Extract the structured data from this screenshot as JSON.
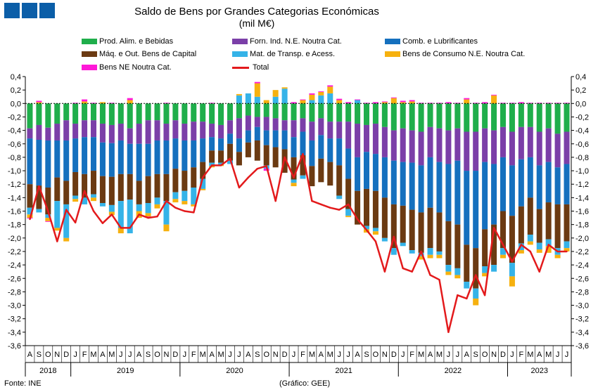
{
  "chart_data": {
    "type": "bar",
    "stacked": true,
    "title": "Saldo de Bens por Grandes Categorias Económicas",
    "subtitle": "(mil M€)",
    "ylim": [
      -3.6,
      0.4
    ],
    "ytick_step": 0.2,
    "yticks": [
      "0,4",
      "0,2",
      "0,0",
      "-0,2",
      "-0,4",
      "-0,6",
      "-0,8",
      "-1,0",
      "-1,2",
      "-1,4",
      "-1,6",
      "-1,8",
      "-2,0",
      "-2,2",
      "-2,4",
      "-2,6",
      "-2,8",
      "-3,0",
      "-3,2",
      "-3,4",
      "-3,6"
    ],
    "months": [
      "A",
      "S",
      "O",
      "N",
      "D",
      "J",
      "F",
      "M",
      "A",
      "M",
      "J",
      "J",
      "A",
      "S",
      "O",
      "N",
      "D",
      "J",
      "F",
      "M",
      "A",
      "M",
      "J",
      "J",
      "A",
      "S",
      "O",
      "N",
      "D",
      "J",
      "F",
      "M",
      "A",
      "M",
      "J",
      "J",
      "A",
      "S",
      "O",
      "N",
      "D",
      "J",
      "F",
      "M",
      "A",
      "M",
      "J",
      "J",
      "A",
      "S",
      "O",
      "N",
      "D",
      "J",
      "F",
      "M",
      "A",
      "M",
      "J",
      "J"
    ],
    "years": [
      {
        "label": "2018",
        "start": 0,
        "count": 5
      },
      {
        "label": "2019",
        "start": 5,
        "count": 12
      },
      {
        "label": "2020",
        "start": 17,
        "count": 12
      },
      {
        "label": "2021",
        "start": 29,
        "count": 12
      },
      {
        "label": "2022",
        "start": 41,
        "count": 12
      },
      {
        "label": "2023",
        "start": 53,
        "count": 7
      }
    ],
    "series": [
      {
        "name": "Prod. Alim. e Bebidas",
        "color": "#1fae4b",
        "values": [
          -0.37,
          -0.32,
          -0.36,
          -0.3,
          -0.25,
          -0.3,
          -0.25,
          -0.25,
          -0.3,
          -0.32,
          -0.3,
          -0.37,
          -0.3,
          -0.25,
          -0.25,
          -0.3,
          -0.25,
          -0.3,
          -0.27,
          -0.27,
          -0.3,
          -0.32,
          -0.25,
          -0.22,
          -0.18,
          -0.2,
          -0.2,
          -0.22,
          -0.25,
          -0.25,
          -0.22,
          -0.27,
          -0.22,
          -0.27,
          -0.27,
          -0.27,
          -0.3,
          -0.32,
          -0.3,
          -0.35,
          -0.4,
          -0.37,
          -0.4,
          -0.42,
          -0.35,
          -0.37,
          -0.4,
          -0.37,
          -0.42,
          -0.42,
          -0.37,
          -0.4,
          -0.35,
          -0.42,
          -0.35,
          -0.35,
          -0.42,
          -0.37,
          -0.45,
          -0.42
        ]
      },
      {
        "name": "Forn. Ind. N.E. Noutra Cat.",
        "color": "#7b3fa8",
        "values": [
          -0.15,
          -0.22,
          -0.19,
          -0.25,
          -0.3,
          -0.22,
          -0.25,
          -0.25,
          -0.28,
          -0.27,
          -0.25,
          -0.23,
          -0.3,
          -0.35,
          -0.3,
          -0.25,
          -0.27,
          -0.25,
          -0.28,
          -0.25,
          -0.2,
          -0.2,
          -0.2,
          -0.3,
          -0.22,
          -0.15,
          -0.2,
          -0.18,
          -0.15,
          -0.25,
          -0.2,
          -0.28,
          -0.25,
          -0.25,
          -0.25,
          -0.4,
          -0.5,
          -0.4,
          -0.45,
          -0.45,
          -0.45,
          -0.5,
          -0.48,
          -0.5,
          -0.45,
          -0.5,
          -0.5,
          -0.48,
          -0.58,
          -0.58,
          -0.5,
          -0.5,
          -0.45,
          -0.5,
          -0.48,
          -0.45,
          -0.5,
          -0.5,
          -0.5,
          -0.48
        ]
      },
      {
        "name": "Comb. e Lubrificantes",
        "color": "#1570be",
        "values": [
          -0.68,
          -0.68,
          -0.7,
          -0.55,
          -0.6,
          -0.5,
          -0.55,
          -0.5,
          -0.5,
          -0.5,
          -0.5,
          -0.45,
          -0.55,
          -0.48,
          -0.5,
          -0.5,
          -0.45,
          -0.45,
          -0.4,
          -0.35,
          -0.2,
          -0.18,
          -0.15,
          -0.2,
          -0.18,
          -0.2,
          -0.22,
          -0.25,
          -0.28,
          -0.3,
          -0.35,
          -0.38,
          -0.35,
          -0.35,
          -0.4,
          -0.45,
          -0.5,
          -0.55,
          -0.55,
          -0.6,
          -0.65,
          -0.65,
          -0.7,
          -0.7,
          -0.75,
          -0.75,
          -0.85,
          -0.95,
          -1.1,
          -1.15,
          -1.0,
          -0.9,
          -0.8,
          -0.75,
          -0.7,
          -0.6,
          -0.65,
          -0.6,
          -0.55,
          -0.6
        ]
      },
      {
        "name": "Máq. e Out. Bens de Capital",
        "color": "#6b3a12",
        "values": [
          -0.35,
          -0.35,
          -0.4,
          -0.35,
          -0.35,
          -0.35,
          -0.35,
          -0.35,
          -0.4,
          -0.42,
          -0.4,
          -0.38,
          -0.35,
          -0.4,
          -0.35,
          -0.4,
          -0.35,
          -0.3,
          -0.3,
          -0.25,
          -0.18,
          -0.18,
          -0.25,
          -0.2,
          -0.22,
          -0.3,
          -0.3,
          -0.3,
          -0.35,
          -0.33,
          -0.3,
          -0.3,
          -0.35,
          -0.35,
          -0.45,
          -0.45,
          -0.5,
          -0.55,
          -0.55,
          -0.6,
          -0.65,
          -0.55,
          -0.6,
          -0.6,
          -0.6,
          -0.58,
          -0.65,
          -0.65,
          -0.55,
          -0.6,
          -0.55,
          -0.6,
          -0.55,
          -0.7,
          -0.55,
          -0.55,
          -0.5,
          -0.55,
          -0.65,
          -0.55
        ]
      },
      {
        "name": "Mat. de Transp. e Acess.",
        "color": "#35b3e8",
        "values": [
          -0.1,
          -0.05,
          -0.05,
          -0.4,
          -0.5,
          -0.05,
          -0.1,
          -0.05,
          -0.05,
          -0.1,
          -0.4,
          -0.5,
          -0.1,
          -0.15,
          -0.1,
          -0.35,
          -0.1,
          -0.15,
          -0.25,
          -0.15,
          -0.05,
          -0.03,
          -0.05,
          0.12,
          0.15,
          0.1,
          -0.05,
          0.1,
          0.22,
          -0.05,
          -0.05,
          0.05,
          0.12,
          0.15,
          -0.05,
          -0.1,
          0.05,
          -0.05,
          -0.05,
          -0.05,
          -0.1,
          -0.05,
          -0.05,
          -0.05,
          -0.1,
          -0.05,
          -0.1,
          -0.1,
          -0.1,
          -0.15,
          -0.1,
          -0.1,
          -0.1,
          -0.2,
          -0.1,
          -0.1,
          -0.1,
          -0.1,
          -0.1,
          -0.1
        ]
      },
      {
        "name": "Bens de Consumo N.E. Noutra Cat.",
        "color": "#f6b10f",
        "values": [
          -0.05,
          0.02,
          -0.05,
          -0.04,
          -0.05,
          -0.04,
          0.03,
          -0.05,
          0.02,
          -0.05,
          -0.08,
          0.05,
          -0.1,
          -0.05,
          -0.06,
          -0.1,
          -0.05,
          -0.05,
          -0.03,
          -0.02,
          -0.02,
          -0.02,
          0.0,
          0.02,
          0.0,
          0.2,
          0.05,
          0.1,
          0.02,
          -0.05,
          0.05,
          0.08,
          0.05,
          0.1,
          0.05,
          -0.02,
          0.0,
          -0.05,
          -0.05,
          0.02,
          0.08,
          0.02,
          0.03,
          -0.05,
          -0.05,
          -0.05,
          -0.05,
          -0.05,
          0.06,
          -0.1,
          -0.05,
          0.12,
          -0.05,
          -0.15,
          -0.05,
          -0.05,
          -0.05,
          -0.1,
          -0.05,
          -0.05
        ]
      },
      {
        "name": "Bens NE Noutra Cat.",
        "color": "#ff18d8",
        "values": [
          -0.01,
          0.02,
          -0.01,
          0.0,
          0.0,
          0.01,
          0.03,
          0.01,
          0.0,
          0.01,
          0.0,
          0.03,
          0.0,
          -0.01,
          0.0,
          0.01,
          0.0,
          0.0,
          0.0,
          0.0,
          0.01,
          0.0,
          0.0,
          0.0,
          0.0,
          0.02,
          -0.03,
          0.0,
          0.0,
          0.02,
          0.01,
          0.02,
          0.01,
          0.02,
          0.02,
          0.02,
          0.01,
          0.01,
          0.02,
          0.01,
          0.01,
          0.02,
          0.02,
          0.01,
          0.01,
          0.01,
          0.02,
          0.01,
          0.02,
          0.01,
          0.02,
          0.01,
          0.01,
          0.01,
          0.02,
          0.01,
          0.01,
          0.01,
          0.01,
          0.01
        ]
      }
    ],
    "total": {
      "name": "Total",
      "color": "#e31a1c",
      "values": [
        -1.72,
        -1.23,
        -1.6,
        -2.05,
        -1.58,
        -1.77,
        -1.3,
        -1.6,
        -1.78,
        -1.65,
        -1.85,
        -1.85,
        -1.65,
        -1.7,
        -1.68,
        -1.45,
        -1.55,
        -1.6,
        -1.62,
        -1.1,
        -0.92,
        -0.92,
        -0.82,
        -1.25,
        -1.1,
        -0.97,
        -0.93,
        -1.45,
        -0.8,
        -1.1,
        -0.75,
        -1.45,
        -1.5,
        -1.55,
        -1.58,
        -1.5,
        -1.72,
        -1.88,
        -2.05,
        -2.5,
        -1.98,
        -2.45,
        -2.5,
        -2.2,
        -2.55,
        -2.62,
        -3.4,
        -2.85,
        -2.9,
        -2.55,
        -2.85,
        -1.85,
        -2.1,
        -2.35,
        -2.1,
        -2.2,
        -2.5,
        -2.1,
        -2.2,
        -2.2
      ]
    }
  },
  "logos": [
    {
      "color": "#0b5ea8"
    },
    {
      "color": "#0b5ea8"
    },
    {
      "color": "#0b5ea8"
    }
  ],
  "footer": {
    "source": "Fonte: INE",
    "credit": "(Gráfico: GEE)"
  }
}
